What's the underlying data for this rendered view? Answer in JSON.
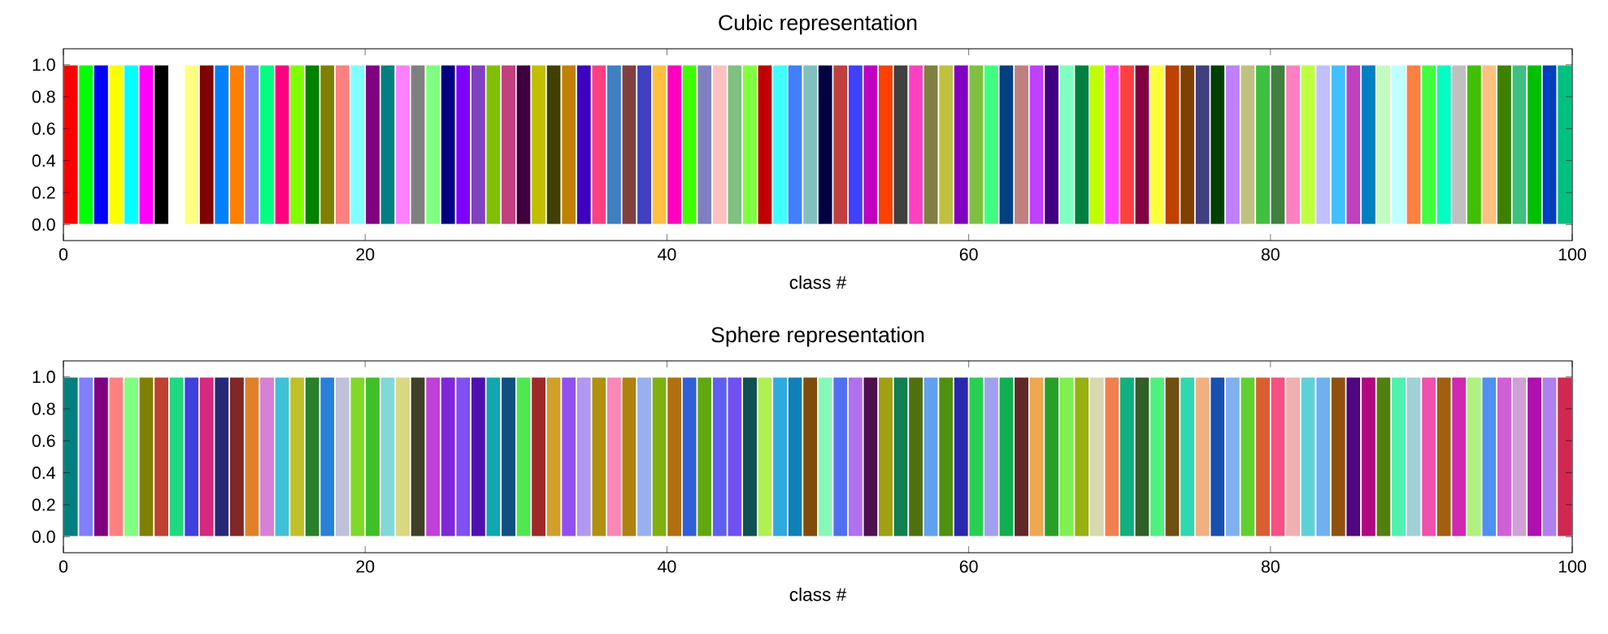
{
  "chart_data": [
    {
      "type": "bar",
      "title": "Cubic representation",
      "xlabel": "class #",
      "x": [
        0.5,
        1.5,
        2.5,
        3.5,
        4.5,
        5.5,
        6.5,
        7.5,
        8.5,
        9.5,
        10.5,
        11.5,
        12.5,
        13.5,
        14.5,
        15.5,
        16.5,
        17.5,
        18.5,
        19.5,
        20.5,
        21.5,
        22.5,
        23.5,
        24.5,
        25.5,
        26.5,
        27.5,
        28.5,
        29.5,
        30.5,
        31.5,
        32.5,
        33.5,
        34.5,
        35.5,
        36.5,
        37.5,
        38.5,
        39.5,
        40.5,
        41.5,
        42.5,
        43.5,
        44.5,
        45.5,
        46.5,
        47.5,
        48.5,
        49.5,
        50.5,
        51.5,
        52.5,
        53.5,
        54.5,
        55.5,
        56.5,
        57.5,
        58.5,
        59.5,
        60.5,
        61.5,
        62.5,
        63.5,
        64.5,
        65.5,
        66.5,
        67.5,
        68.5,
        69.5,
        70.5,
        71.5,
        72.5,
        73.5,
        74.5,
        75.5,
        76.5,
        77.5,
        78.5,
        79.5,
        80.5,
        81.5,
        82.5,
        83.5,
        84.5,
        85.5,
        86.5,
        87.5,
        88.5,
        89.5,
        90.5,
        91.5,
        92.5,
        93.5,
        94.5,
        95.5,
        96.5,
        97.5,
        98.5,
        99.5
      ],
      "values": [
        1,
        1,
        1,
        1,
        1,
        1,
        1,
        1,
        1,
        1,
        1,
        1,
        1,
        1,
        1,
        1,
        1,
        1,
        1,
        1,
        1,
        1,
        1,
        1,
        1,
        1,
        1,
        1,
        1,
        1,
        1,
        1,
        1,
        1,
        1,
        1,
        1,
        1,
        1,
        1,
        1,
        1,
        1,
        1,
        1,
        1,
        1,
        1,
        1,
        1,
        1,
        1,
        1,
        1,
        1,
        1,
        1,
        1,
        1,
        1,
        1,
        1,
        1,
        1,
        1,
        1,
        1,
        1,
        1,
        1,
        1,
        1,
        1,
        1,
        1,
        1,
        1,
        1,
        1,
        1,
        1,
        1,
        1,
        1,
        1,
        1,
        1,
        1,
        1,
        1,
        1,
        1,
        1,
        1,
        1,
        1,
        1,
        1,
        1,
        1
      ],
      "colors": [
        "#ff0000",
        "#00ff00",
        "#0000ff",
        "#ffff00",
        "#00ffff",
        "#ff00ff",
        "#000000",
        "#ffffff",
        "#ffff80",
        "#800000",
        "#0080ff",
        "#ff8000",
        "#8080ff",
        "#00ff80",
        "#ff0080",
        "#80ff00",
        "#008000",
        "#808000",
        "#ff8080",
        "#80ffff",
        "#800080",
        "#008080",
        "#ff80ff",
        "#808080",
        "#80ff80",
        "#000080",
        "#8000ff",
        "#8040c0",
        "#80c000",
        "#c04080",
        "#400040",
        "#c0c000",
        "#404000",
        "#c08000",
        "#4000c0",
        "#ff4080",
        "#4080c0",
        "#804040",
        "#4040c0",
        "#ffc040",
        "#ff00c0",
        "#40ff00",
        "#8080c0",
        "#ffc0c0",
        "#80c080",
        "#80ff40",
        "#c00000",
        "#40ffff",
        "#4080ff",
        "#80c0c0",
        "#000040",
        "#c04040",
        "#4040ff",
        "#c000c0",
        "#ff4000",
        "#404040",
        "#ff40c0",
        "#808040",
        "#c0c040",
        "#8000c0",
        "#80c040",
        "#40ff80",
        "#004080",
        "#c08080",
        "#c040ff",
        "#400080",
        "#80ffc0",
        "#008040",
        "#c0ff00",
        "#ff40ff",
        "#ff4040",
        "#800040",
        "#ffff40",
        "#c04000",
        "#804000",
        "#404080",
        "#004000",
        "#c080ff",
        "#c0c080",
        "#40c040",
        "#408040",
        "#ff80c0",
        "#c0ff40",
        "#c0c0ff",
        "#40c0ff",
        "#c040c0",
        "#0080c0",
        "#c0ffc0",
        "#c0ffff",
        "#ff8040",
        "#40ff40",
        "#00ffc0",
        "#c0c0c0",
        "#40c000",
        "#ffc080",
        "#408000",
        "#40c080",
        "#00c000",
        "#0040c0",
        "#00c080"
      ],
      "xlim": [
        0,
        100
      ],
      "xticks": [
        0,
        20,
        40,
        60,
        80,
        100
      ],
      "ylim": [
        -0.1,
        1.1
      ],
      "yticks": [
        {
          "value": 0,
          "label": "0.0"
        },
        {
          "value": 0.2,
          "label": "0.2"
        },
        {
          "value": 0.4,
          "label": "0.4"
        },
        {
          "value": 0.6,
          "label": "0.6"
        },
        {
          "value": 0.8,
          "label": "0.8"
        },
        {
          "value": 1,
          "label": "1.0"
        }
      ]
    },
    {
      "type": "bar",
      "title": "Sphere representation",
      "xlabel": "class #",
      "x": [
        0.5,
        1.5,
        2.5,
        3.5,
        4.5,
        5.5,
        6.5,
        7.5,
        8.5,
        9.5,
        10.5,
        11.5,
        12.5,
        13.5,
        14.5,
        15.5,
        16.5,
        17.5,
        18.5,
        19.5,
        20.5,
        21.5,
        22.5,
        23.5,
        24.5,
        25.5,
        26.5,
        27.5,
        28.5,
        29.5,
        30.5,
        31.5,
        32.5,
        33.5,
        34.5,
        35.5,
        36.5,
        37.5,
        38.5,
        39.5,
        40.5,
        41.5,
        42.5,
        43.5,
        44.5,
        45.5,
        46.5,
        47.5,
        48.5,
        49.5,
        50.5,
        51.5,
        52.5,
        53.5,
        54.5,
        55.5,
        56.5,
        57.5,
        58.5,
        59.5,
        60.5,
        61.5,
        62.5,
        63.5,
        64.5,
        65.5,
        66.5,
        67.5,
        68.5,
        69.5,
        70.5,
        71.5,
        72.5,
        73.5,
        74.5,
        75.5,
        76.5,
        77.5,
        78.5,
        79.5,
        80.5,
        81.5,
        82.5,
        83.5,
        84.5,
        85.5,
        86.5,
        87.5,
        88.5,
        89.5,
        90.5,
        91.5,
        92.5,
        93.5,
        94.5,
        95.5,
        96.5,
        97.5,
        98.5,
        99.5
      ],
      "values": [
        1,
        1,
        1,
        1,
        1,
        1,
        1,
        1,
        1,
        1,
        1,
        1,
        1,
        1,
        1,
        1,
        1,
        1,
        1,
        1,
        1,
        1,
        1,
        1,
        1,
        1,
        1,
        1,
        1,
        1,
        1,
        1,
        1,
        1,
        1,
        1,
        1,
        1,
        1,
        1,
        1,
        1,
        1,
        1,
        1,
        1,
        1,
        1,
        1,
        1,
        1,
        1,
        1,
        1,
        1,
        1,
        1,
        1,
        1,
        1,
        1,
        1,
        1,
        1,
        1,
        1,
        1,
        1,
        1,
        1,
        1,
        1,
        1,
        1,
        1,
        1,
        1,
        1,
        1,
        1,
        1,
        1,
        1,
        1,
        1,
        1,
        1,
        1,
        1,
        1,
        1,
        1,
        1,
        1,
        1,
        1,
        1,
        1,
        1,
        1
      ],
      "colors": [
        "#008080",
        "#8080ff",
        "#800080",
        "#ff8080",
        "#80ff80",
        "#808000",
        "#c04030",
        "#20d880",
        "#4040e0",
        "#d82880",
        "#282878",
        "#802828",
        "#e08028",
        "#d880d8",
        "#40c0d8",
        "#c0c028",
        "#288028",
        "#2880d8",
        "#c0c0d8",
        "#80d828",
        "#40c028",
        "#80d8d8",
        "#d8d880",
        "#404028",
        "#c040d8",
        "#8028d8",
        "#8050f0",
        "#5010b0",
        "#10a8b0",
        "#105080",
        "#50e850",
        "#a02828",
        "#d0a028",
        "#9050f0",
        "#b098f0",
        "#b09010",
        "#f888b8",
        "#b08010",
        "#98b0f0",
        "#80b010",
        "#b07010",
        "#3060d8",
        "#60a810",
        "#6060f0",
        "#7050f0",
        "#105050",
        "#b0f050",
        "#30a8e0",
        "#1080b8",
        "#804c0c",
        "#88f8b8",
        "#5070f0",
        "#b070f0",
        "#501050",
        "#a0a010",
        "#108050",
        "#507010",
        "#60a0f0",
        "#509010",
        "#2828b0",
        "#28d050",
        "#a0a0f0",
        "#10b050",
        "#602828",
        "#f0a850",
        "#28a028",
        "#80f050",
        "#98b010",
        "#d8d8b0",
        "#f08050",
        "#10b080",
        "#305f28",
        "#50f080",
        "#705010",
        "#30d8b0",
        "#f0b080",
        "#1850b0",
        "#80b0f0",
        "#60d030",
        "#d86030",
        "#f85080",
        "#f0b0b0",
        "#60d0d8",
        "#70b0f0",
        "#905010",
        "#500880",
        "#b00880",
        "#508010",
        "#50f0b0",
        "#a0d0d8",
        "#f050b0",
        "#a06010",
        "#d028b0",
        "#b0f080",
        "#5090f0",
        "#d060d8",
        "#d0a0d8",
        "#b010b0",
        "#b080f0",
        "#d02850"
      ],
      "xlim": [
        0,
        100
      ],
      "xticks": [
        0,
        20,
        40,
        60,
        80,
        100
      ],
      "ylim": [
        -0.1,
        1.1
      ],
      "yticks": [
        {
          "value": 0,
          "label": "0.0"
        },
        {
          "value": 0.2,
          "label": "0.2"
        },
        {
          "value": 0.4,
          "label": "0.4"
        },
        {
          "value": 0.6,
          "label": "0.6"
        },
        {
          "value": 0.8,
          "label": "0.8"
        },
        {
          "value": 1,
          "label": "1.0"
        }
      ]
    }
  ]
}
